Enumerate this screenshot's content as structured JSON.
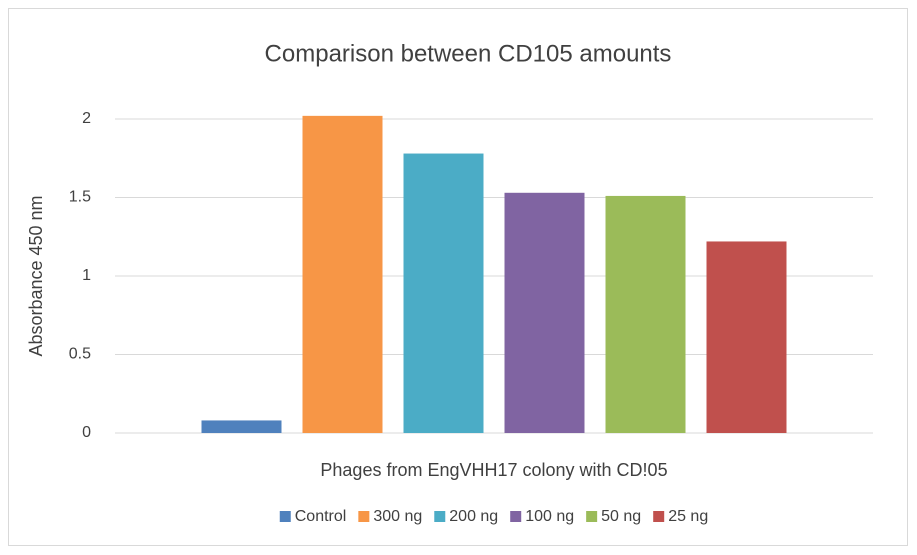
{
  "chart_data": {
    "type": "bar",
    "title": "Comparison between CD105 amounts",
    "y_label": "Absorbance 450 nm",
    "categories": [
      "Phages from EngVHH17 colony with CD!05"
    ],
    "series": [
      {
        "name": "Control",
        "color": "#4f81bd",
        "values": [
          0.08
        ]
      },
      {
        "name": "300 ng",
        "color": "#f79646",
        "values": [
          2.02
        ]
      },
      {
        "name": "200 ng",
        "color": "#4bacc6",
        "values": [
          1.78
        ]
      },
      {
        "name": "100 ng",
        "color": "#8064a2",
        "values": [
          1.53
        ]
      },
      {
        "name": "50 ng",
        "color": "#9bbb59",
        "values": [
          1.51
        ]
      },
      {
        "name": "25 ng",
        "color": "#c0504d",
        "values": [
          1.22
        ]
      }
    ],
    "ylim": [
      0,
      2
    ],
    "yticks": [
      0,
      0.5,
      1,
      1.5,
      2
    ],
    "grid": true,
    "legend": "bottom"
  }
}
